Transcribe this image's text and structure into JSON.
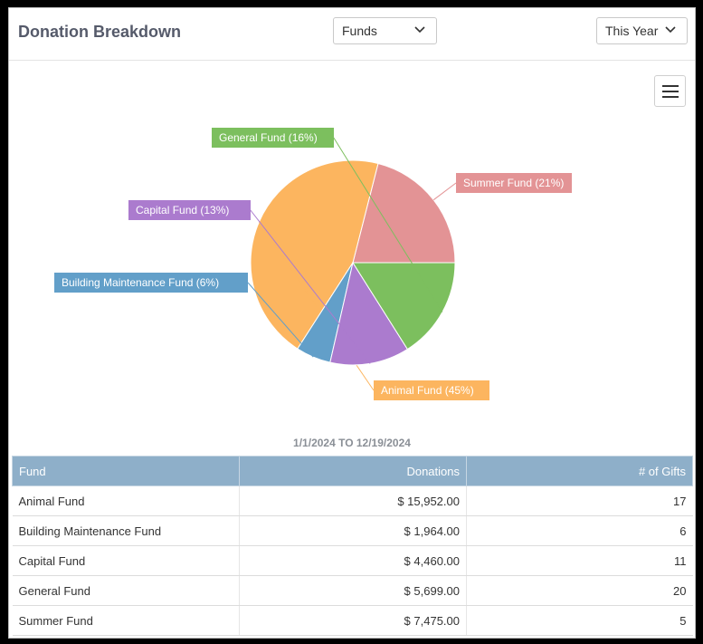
{
  "header": {
    "title": "Donation Breakdown",
    "funds_select": "Funds",
    "period_select": "This Year"
  },
  "colors": {
    "Summer Fund": "#e39395",
    "Animal Fund": "#fcb55f",
    "Building Maintenance Fund": "#629fc9",
    "Capital Fund": "#ab7bce",
    "General Fund": "#7cbf5e"
  },
  "chart_data": {
    "type": "pie",
    "categories": [
      "Summer Fund",
      "Animal Fund",
      "Building Maintenance Fund",
      "Capital Fund",
      "General Fund"
    ],
    "values": [
      7475.0,
      15952.0,
      1964.0,
      4460.0,
      5699.0
    ],
    "labels": [
      "Summer Fund (21%)",
      "Animal Fund (45%)",
      "Building Maintenance Fund (6%)",
      "Capital Fund (13%)",
      "General Fund (16%)"
    ],
    "subtitle": "1/1/2024 TO 12/19/2024"
  },
  "table": {
    "headers": [
      "Fund",
      "Donations",
      "# of Gifts"
    ],
    "rows": [
      [
        "Animal Fund",
        "$ 15,952.00",
        "17"
      ],
      [
        "Building Maintenance Fund",
        "$ 1,964.00",
        "6"
      ],
      [
        "Capital Fund",
        "$ 4,460.00",
        "11"
      ],
      [
        "General Fund",
        "$ 5,699.00",
        "20"
      ],
      [
        "Summer Fund",
        "$ 7,475.00",
        "5"
      ]
    ]
  }
}
